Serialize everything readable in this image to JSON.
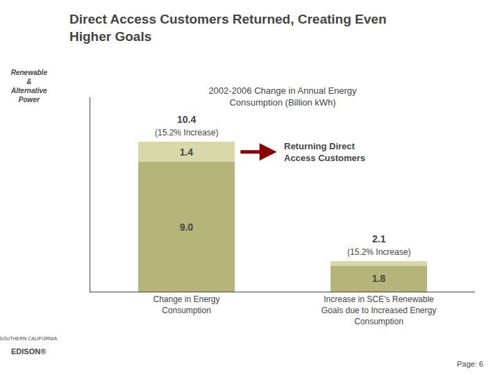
{
  "chart_data": {
    "type": "bar",
    "stacked": true,
    "title": "2002-2006 Change in Annual Energy\nConsumption (Billion kWh)",
    "heading": "Direct Access Customers Returned, Creating Even\nHigher Goals",
    "sidebar_text": "Renewable\n&\nAlternative\nPower",
    "page_label": "Page: 6",
    "logo_text": [
      "SOUTHERN CALIFORNIA",
      "EDISON®"
    ],
    "categories": [
      "Change in Energy\nConsumption",
      "Increase in SCE’s Renewable\nGoals due to Increased Energy\nConsumption"
    ],
    "series": [
      {
        "color": "#b5b57a",
        "values": [
          9.0,
          1.8
        ],
        "value_labels": [
          "9.0",
          "1.8"
        ]
      },
      {
        "color": "#d8d8a8",
        "values": [
          1.4,
          0.3
        ],
        "value_labels": [
          "1.4",
          null
        ]
      }
    ],
    "data_labels": true,
    "annotations": [
      {
        "text": "10.4",
        "category": "Change in Energy\nConsumption"
      },
      {
        "text": "(15.2% Increase)",
        "category": "Change in Energy\nConsumption"
      },
      {
        "text": "2.1",
        "category": "Increase in SCE’s Renewable\nGoals due to Increased Energy\nConsumption"
      },
      {
        "text": "(15.2% Increase)",
        "category": "Increase in SCE’s Renewable\nGoals due to Increased Energy\nConsumption"
      },
      {
        "text": "Returning Direct\nAccess Customers",
        "category": "Change in Energy\nConsumption",
        "color": "#8b0000"
      }
    ],
    "ylim": [
      0,
      13.5
    ],
    "yticks": [],
    "tick_labels": "x",
    "grid": false
  }
}
